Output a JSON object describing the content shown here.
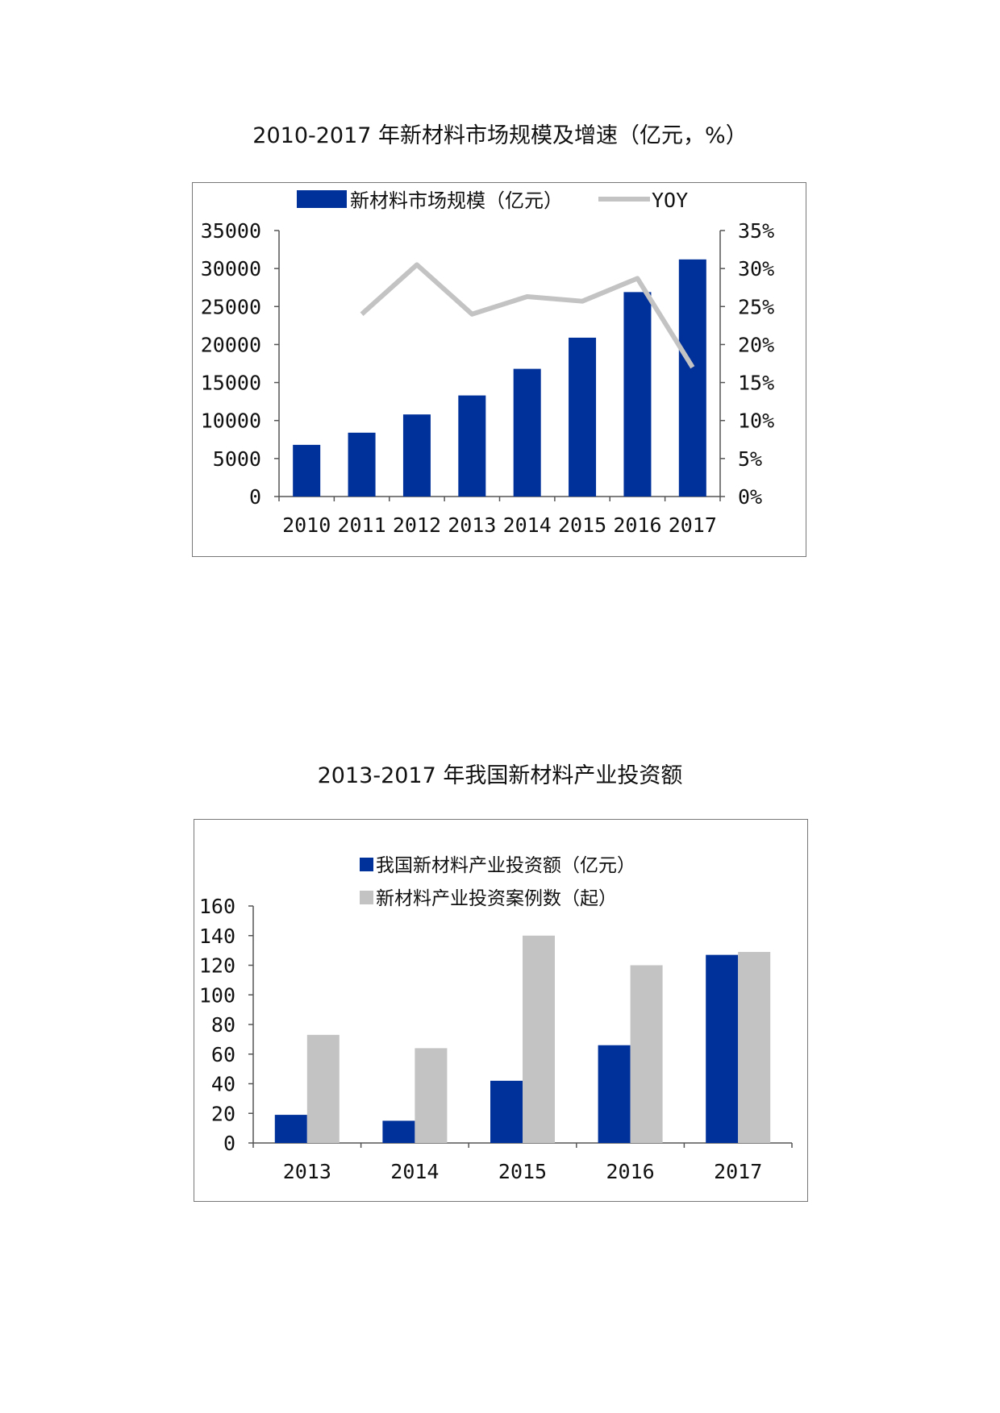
{
  "colors": {
    "bar_primary": "#00309a",
    "bar_secondary": "#c3c3c3",
    "axis": "#555555",
    "line": "#c3c3c3"
  },
  "charts": [
    {
      "title": "2010-2017 年新材料市场规模及增速（亿元，%）",
      "chart_data": {
        "type": "bar",
        "categories": [
          "2010",
          "2011",
          "2012",
          "2013",
          "2014",
          "2015",
          "2016",
          "2017"
        ],
        "series": [
          {
            "name": "新材料市场规模（亿元）",
            "type": "bar",
            "axis": "left",
            "values": [
              6800,
              8400,
              10800,
              13300,
              16800,
              20900,
              26900,
              31200
            ]
          },
          {
            "name": "YOY",
            "type": "line",
            "axis": "right",
            "values": [
              null,
              24.0,
              30.5,
              24.0,
              26.3,
              25.7,
              28.7,
              17.0
            ]
          }
        ],
        "y_left": {
          "min": 0,
          "max": 35000,
          "ticks": [
            "0",
            "5000",
            "10000",
            "15000",
            "20000",
            "25000",
            "30000",
            "35000"
          ]
        },
        "y_right": {
          "min": 0,
          "max": 35,
          "ticks": [
            "0%",
            "5%",
            "10%",
            "15%",
            "20%",
            "25%",
            "30%",
            "35%"
          ]
        },
        "legend_position": "top",
        "grid": false
      }
    },
    {
      "title": "2013-2017 年我国新材料产业投资额",
      "chart_data": {
        "type": "bar",
        "categories": [
          "2013",
          "2014",
          "2015",
          "2016",
          "2017"
        ],
        "series": [
          {
            "name": "我国新材料产业投资额（亿元）",
            "values": [
              19,
              15,
              42,
              66,
              127
            ]
          },
          {
            "name": "新材料产业投资案例数（起）",
            "values": [
              73,
              64,
              140,
              120,
              129
            ]
          }
        ],
        "y": {
          "min": 0,
          "max": 160,
          "ticks": [
            "0",
            "20",
            "40",
            "60",
            "80",
            "100",
            "120",
            "140",
            "160"
          ]
        },
        "legend_position": "top",
        "grid": false
      }
    }
  ]
}
